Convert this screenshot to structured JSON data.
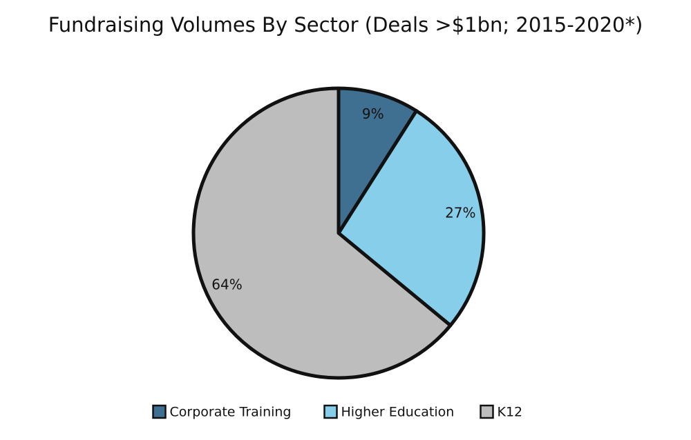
{
  "chart_data": {
    "type": "pie",
    "title": "Fundraising Volumes By Sector (Deals >$1bn; 2015-2020*)",
    "categories": [
      "Corporate Training",
      "Higher Education",
      "K12"
    ],
    "values": [
      9,
      27,
      64
    ],
    "value_labels": [
      "9%",
      "27%",
      "64%"
    ],
    "colors": [
      "#3f6f91",
      "#87ceeb",
      "#bdbdbd"
    ],
    "legend": "bottom"
  }
}
